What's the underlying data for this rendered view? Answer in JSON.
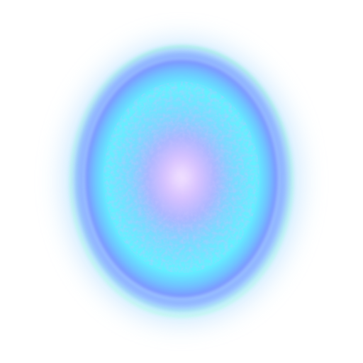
{
  "orb": {
    "name": "glowing-oval-orb",
    "colors": {
      "background": "#ffffff",
      "outer_glow": "#9fd4ff",
      "rim": "#7fa3ff",
      "rim_highlight": "#b6ffef",
      "body": "#62f2ff",
      "inner_ring": "#7f9cff",
      "core": "#e4c8ff"
    }
  }
}
